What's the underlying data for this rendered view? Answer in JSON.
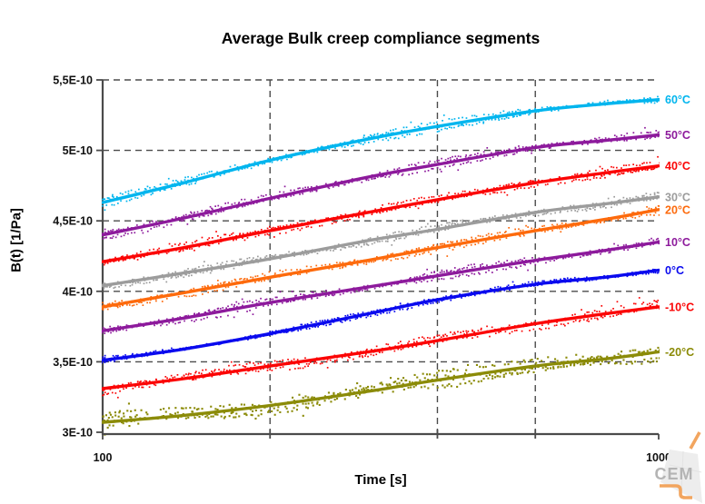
{
  "chart": {
    "title": "Average Bulk creep compliance segments",
    "xlabel": "Time [s]",
    "ylabel": "B(t) [1/Pa]"
  },
  "logo": {
    "text": "CEM"
  },
  "chart_data": {
    "type": "line",
    "title": "Average Bulk creep compliance segments",
    "xlabel": "Time [s]",
    "ylabel": "B(t) [1/Pa]",
    "x_scale": "log",
    "xlim": [
      100,
      1000
    ],
    "ylim": [
      3e-10,
      5.5e-10
    ],
    "grid": "dashed",
    "grid_color": "#4b4b4b",
    "legend_position": "right-of-line-ends",
    "x_ticks": [
      {
        "value": 100,
        "label": "100"
      },
      {
        "value": 1000,
        "label": "1000"
      }
    ],
    "x_gridlines": [
      200,
      400,
      600
    ],
    "y_ticks": [
      {
        "value": 5.5e-10,
        "label": "5,5E-10"
      },
      {
        "value": 5e-10,
        "label": "5E-10"
      },
      {
        "value": 4.5e-10,
        "label": "4,5E-10"
      },
      {
        "value": 4e-10,
        "label": "4E-10"
      },
      {
        "value": 3.5e-10,
        "label": "3,5E-10"
      },
      {
        "value": 3e-10,
        "label": "3E-10"
      }
    ],
    "x": [
      100,
      140,
      200,
      300,
      400,
      600,
      800,
      1000
    ],
    "series": [
      {
        "name": "60°C",
        "color": "#00b5ee",
        "noise": 4,
        "values": [
          4.63e-10,
          4.77e-10,
          4.93e-10,
          5.08e-10,
          5.17e-10,
          5.28e-10,
          5.33e-10,
          5.36e-10
        ]
      },
      {
        "name": "50°C",
        "color": "#8d1a9c",
        "noise": 4,
        "values": [
          4.4e-10,
          4.52e-10,
          4.66e-10,
          4.81e-10,
          4.9e-10,
          5.02e-10,
          5.07e-10,
          5.11e-10
        ]
      },
      {
        "name": "40°C",
        "color": "#fb0505",
        "noise": 4,
        "values": [
          4.21e-10,
          4.31e-10,
          4.43e-10,
          4.56e-10,
          4.65e-10,
          4.77e-10,
          4.84e-10,
          4.89e-10
        ]
      },
      {
        "name": "30°C",
        "color": "#9c9c9c",
        "noise": 3.5,
        "values": [
          4.04e-10,
          4.13e-10,
          4.23e-10,
          4.36e-10,
          4.44e-10,
          4.56e-10,
          4.62e-10,
          4.67e-10
        ]
      },
      {
        "name": "20°C",
        "color": "#fd6a0c",
        "noise": 4,
        "values": [
          3.89e-10,
          3.99e-10,
          4.1e-10,
          4.22e-10,
          4.31e-10,
          4.43e-10,
          4.51e-10,
          4.58e-10
        ]
      },
      {
        "name": "10°C",
        "color": "#8d1a9c",
        "noise": 4,
        "values": [
          3.72e-10,
          3.81e-10,
          3.92e-10,
          4.03e-10,
          4.11e-10,
          4.22e-10,
          4.29e-10,
          4.35e-10
        ]
      },
      {
        "name": "0°C",
        "color": "#0a0aee",
        "noise": 2.5,
        "values": [
          3.51e-10,
          3.59e-10,
          3.7e-10,
          3.84e-10,
          3.94e-10,
          4.05e-10,
          4.1e-10,
          4.15e-10
        ]
      },
      {
        "name": "-10°C",
        "color": "#fb0505",
        "noise": 5,
        "values": [
          3.31e-10,
          3.38e-10,
          3.47e-10,
          3.57e-10,
          3.65e-10,
          3.77e-10,
          3.84e-10,
          3.89e-10
        ]
      },
      {
        "name": "-20°C",
        "color": "#8b8b08",
        "noise": 7.5,
        "values": [
          3.07e-10,
          3.12e-10,
          3.19e-10,
          3.29e-10,
          3.37e-10,
          3.47e-10,
          3.52e-10,
          3.57e-10
        ]
      }
    ]
  }
}
